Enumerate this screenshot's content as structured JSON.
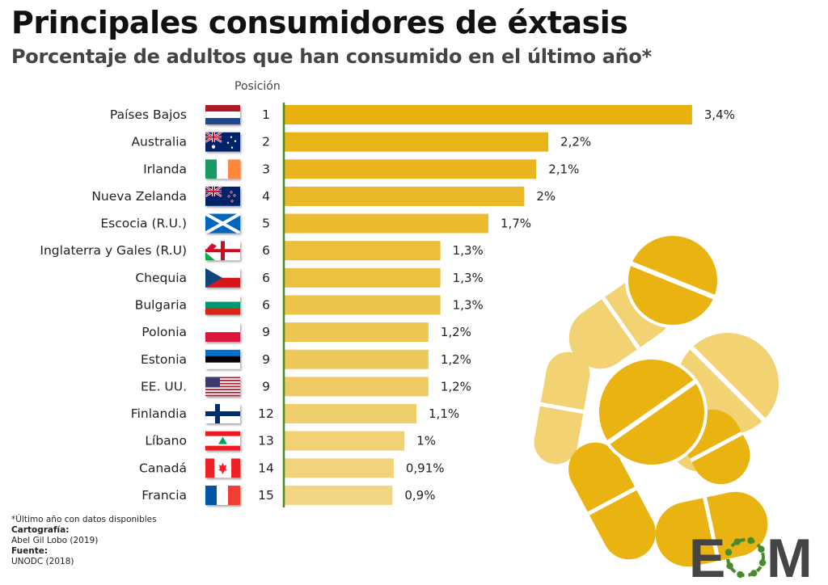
{
  "title": "Principales consumidores de éxtasis",
  "subtitle": "Porcentaje de adultos que han consumido en el último año*",
  "position_header": "Posición",
  "footer": {
    "note": "*Último año con datos disponibles",
    "cartography_label": "Cartografía:",
    "cartography_value": "Abel Gil Lobo (2019)",
    "source_label": "Fuente:",
    "source_value": "UNODC (2018)"
  },
  "logo": {
    "text_left": "E",
    "text_right": "M",
    "ring_color": "#4a8a2f",
    "text_color": "#454545"
  },
  "colors": {
    "bar_start": "#E8B10F",
    "bar_end": "#F2D684",
    "axis": "#4a8a2f",
    "pills_dark": "#E9B311",
    "pills_light": "#F2D272"
  },
  "chart_data": {
    "type": "bar",
    "orientation": "horizontal",
    "title": "Principales consumidores de éxtasis",
    "subtitle": "Porcentaje de adultos que han consumido en el último año*",
    "xlabel": "",
    "ylabel": "",
    "unit": "%",
    "xlim": [
      0,
      3.4
    ],
    "grid": false,
    "categories": [
      "Países Bajos",
      "Australia",
      "Irlanda",
      "Nueva Zelanda",
      "Escocia (R.U.)",
      "Inglaterra y Gales (R.U)",
      "Chequia",
      "Bulgaria",
      "Polonia",
      "Estonia",
      "EE. UU.",
      "Finlandia",
      "Líbano",
      "Canadá",
      "Francia"
    ],
    "flags": [
      "netherlands-flag",
      "australia-flag",
      "ireland-flag",
      "new-zealand-flag",
      "scotland-flag",
      "england-wales-flag",
      "czechia-flag",
      "bulgaria-flag",
      "poland-flag",
      "estonia-flag",
      "usa-flag",
      "finland-flag",
      "lebanon-flag",
      "canada-flag",
      "france-flag"
    ],
    "positions": [
      "1",
      "2",
      "3",
      "4",
      "5",
      "6",
      "6",
      "6",
      "9",
      "9",
      "9",
      "12",
      "13",
      "14",
      "15"
    ],
    "values": [
      3.4,
      2.2,
      2.1,
      2.0,
      1.7,
      1.3,
      1.3,
      1.3,
      1.2,
      1.2,
      1.2,
      1.1,
      1.0,
      0.91,
      0.9
    ],
    "labels": [
      "3,4%",
      "2,2%",
      "2,1%",
      "2%",
      "1,7%",
      "1,3%",
      "1,3%",
      "1,3%",
      "1,2%",
      "1,2%",
      "1,2%",
      "1,1%",
      "1%",
      "0,91%",
      "0,9%"
    ]
  }
}
